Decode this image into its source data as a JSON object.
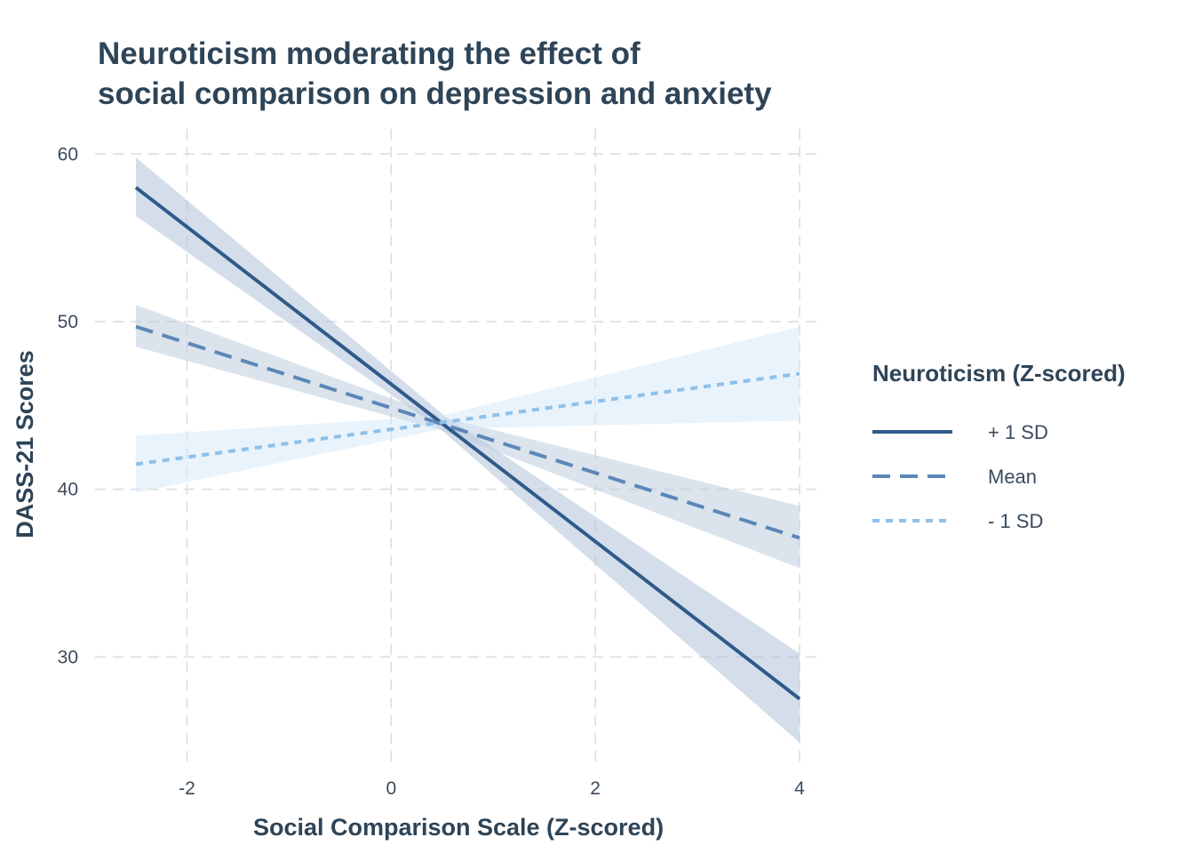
{
  "chart_data": {
    "type": "line",
    "title": [
      "Neuroticism moderating the effect of",
      "social comparison on depression and anxiety"
    ],
    "xlabel": "Social Comparison Scale (Z-scored)",
    "ylabel": "DASS-21 Scores",
    "xlim": [
      -2.9,
      4.2
    ],
    "ylim": [
      23.5,
      61.5
    ],
    "x_ticks": [
      -2,
      0,
      2,
      4
    ],
    "y_ticks": [
      30,
      40,
      50,
      60
    ],
    "x_tick_labels": [
      "-2",
      "0",
      "2",
      "4"
    ],
    "y_tick_labels": [
      "30",
      "40",
      "50",
      "60"
    ],
    "grid": true,
    "legend": {
      "title": "Neuroticism (Z-scored)",
      "placement": "right"
    },
    "series": [
      {
        "name": "+ 1 SD",
        "color": "#2f5a8a",
        "linestyle": "solid",
        "band_color": "#aabdd5",
        "x": [
          -2.5,
          4.0
        ],
        "y": [
          58.0,
          27.5
        ],
        "lower": [
          [
            -2.5,
            56.3
          ],
          [
            0.5,
            43.5
          ],
          [
            4.0,
            24.9
          ]
        ],
        "upper": [
          [
            -2.5,
            59.8
          ],
          [
            0.5,
            44.5
          ],
          [
            4.0,
            30.2
          ]
        ]
      },
      {
        "name": "Mean",
        "color": "#5b87b8",
        "linestyle": "dashed",
        "band_color": "#b8c8dc",
        "x": [
          -2.5,
          4.0
        ],
        "y": [
          49.7,
          37.1
        ],
        "lower": [
          [
            -2.5,
            48.5
          ],
          [
            0.5,
            43.5
          ],
          [
            4.0,
            35.3
          ]
        ],
        "upper": [
          [
            -2.5,
            51.0
          ],
          [
            0.5,
            44.3
          ],
          [
            4.0,
            39.0
          ]
        ]
      },
      {
        "name": "- 1 SD",
        "color": "#8fc0e8",
        "linestyle": "dotted",
        "band_color": "#d4e8f8",
        "x": [
          -2.5,
          4.0
        ],
        "y": [
          41.5,
          46.9
        ],
        "lower": [
          [
            -2.5,
            39.8
          ],
          [
            0.5,
            43.6
          ],
          [
            4.0,
            44.1
          ]
        ],
        "upper": [
          [
            -2.5,
            43.2
          ],
          [
            0.5,
            44.4
          ],
          [
            4.0,
            49.7
          ]
        ]
      }
    ]
  }
}
